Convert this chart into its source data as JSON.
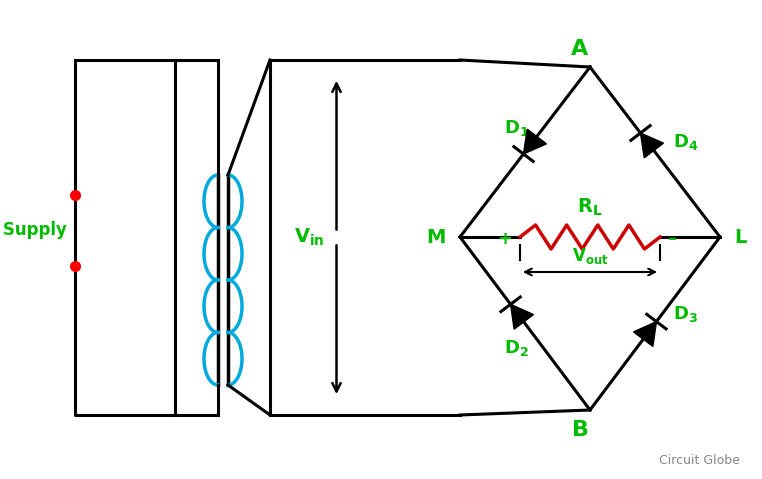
{
  "bg_color": "#ffffff",
  "black": "#000000",
  "green": "#00bb00",
  "red": "#cc0000",
  "blue": "#00aadd",
  "label_AC": "AC Supply",
  "label_A": "A",
  "label_B": "B",
  "label_M": "M",
  "label_L": "L",
  "label_circuit_globe": "Circuit Globe",
  "figsize": [
    7.62,
    4.79
  ],
  "dpi": 100
}
